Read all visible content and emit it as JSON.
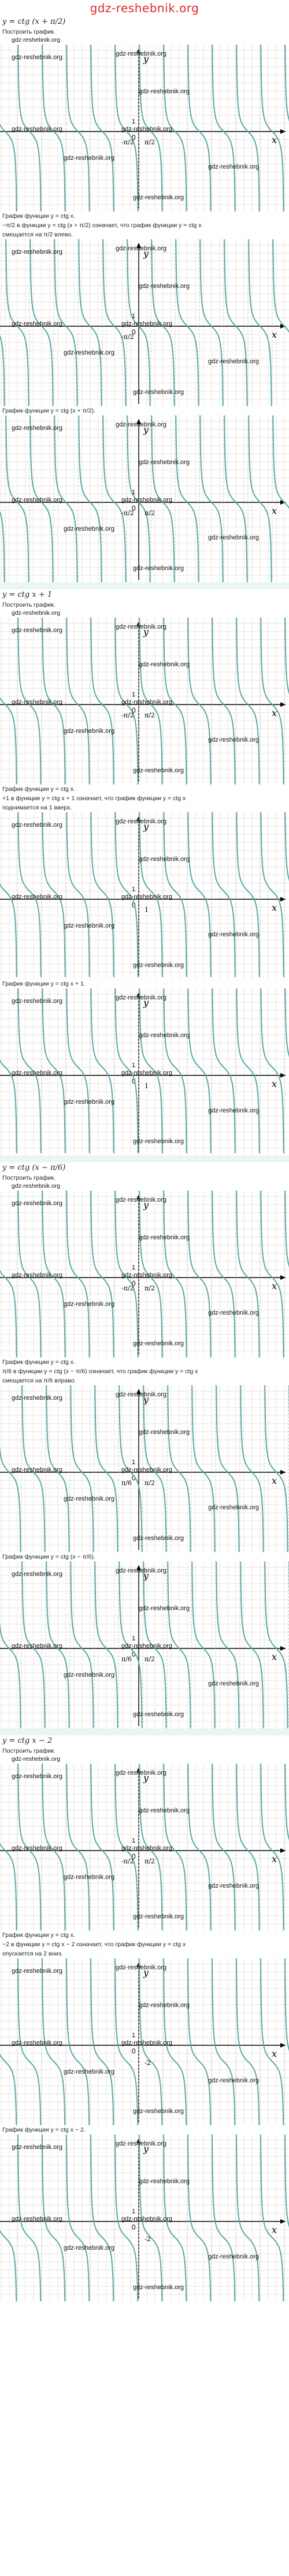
{
  "site_header": "gdz-reshebnik.org",
  "watermark": "gdz-reshebnik.org",
  "axis": {
    "x": "x",
    "y": "y",
    "origin": "0",
    "unit": "1"
  },
  "colors": {
    "curve": "#5ba8a8",
    "band": "#eaf7ef",
    "grid": "#e6e6e6",
    "header": "#e02b2b"
  },
  "sections": [
    {
      "equation": "y = ctg (x + π/2)",
      "lines": [
        "Построить график."
      ],
      "graphs": [
        {
          "shift_label": "-π/2",
          "tick_label": "π/2",
          "vshift": 0,
          "hshift": 0
        },
        {
          "shift_label": "-π/2",
          "tick_label": "",
          "vshift": 0,
          "hshift": -0.5
        },
        {
          "shift_label": "-π/2",
          "tick_label": "π/2",
          "vshift": 0,
          "hshift": -0.5
        }
      ],
      "text_blocks": [
        [
          "График функции y = ctg x.",
          "−π/2 в функции y = ctg (x + π/2) означает, что график функции y = ctg x",
          "смещается на π/2 влево."
        ],
        [
          "График функции y = ctg (x + π/2)."
        ]
      ]
    },
    {
      "equation": "y = ctg x + 1",
      "lines": [
        "Построить график."
      ],
      "graphs": [
        {
          "shift_label": "-π/2",
          "tick_label": "π/2",
          "vshift": 0,
          "hshift": 0
        },
        {
          "shift_label": "",
          "tick_label": "1",
          "vshift": 1,
          "hshift": 0
        },
        {
          "shift_label": "",
          "tick_label": "1",
          "vshift": 1,
          "hshift": 0
        }
      ],
      "text_blocks": [
        [
          "График функции y = ctg x.",
          "+1 в функции y = ctg x + 1 означает, что график функции y = ctg x",
          "поднимается на 1 вверх."
        ],
        [
          "График функции y = ctg x + 1."
        ]
      ]
    },
    {
      "equation": "y = ctg (x − π/6)",
      "lines": [
        "Построить график."
      ],
      "graphs": [
        {
          "shift_label": "-π/2",
          "tick_label": "π/2",
          "vshift": 0,
          "hshift": 0
        },
        {
          "shift_label": "π/6",
          "tick_label": "π/2",
          "vshift": 0,
          "hshift": 0.1667
        },
        {
          "shift_label": "π/6",
          "tick_label": "π/2",
          "vshift": 0,
          "hshift": 0.1667
        }
      ],
      "text_blocks": [
        [
          "График функции y = ctg x.",
          "π/6 в функции y = ctg (x − π/6) означает, что график функции y = ctg x",
          "смещается на π/6 вправо."
        ],
        [
          "График функции y = ctg (x − π/6)."
        ]
      ]
    },
    {
      "equation": "y = ctg x − 2",
      "lines": [
        "Построить график."
      ],
      "graphs": [
        {
          "shift_label": "-π/2",
          "tick_label": "π/2",
          "vshift": 0,
          "hshift": 0
        },
        {
          "shift_label": "",
          "tick_label": "-2",
          "vshift": -2,
          "hshift": 0
        },
        {
          "shift_label": "",
          "tick_label": "-2",
          "vshift": -2,
          "hshift": 0
        }
      ],
      "text_blocks": [
        [
          "График функции y = ctg x.",
          "−2 в функции y = ctg x − 2 означает, что график функции y = ctg x",
          "опускается на 2 вниз."
        ],
        [
          "График функции y = ctg x − 2."
        ]
      ]
    }
  ]
}
